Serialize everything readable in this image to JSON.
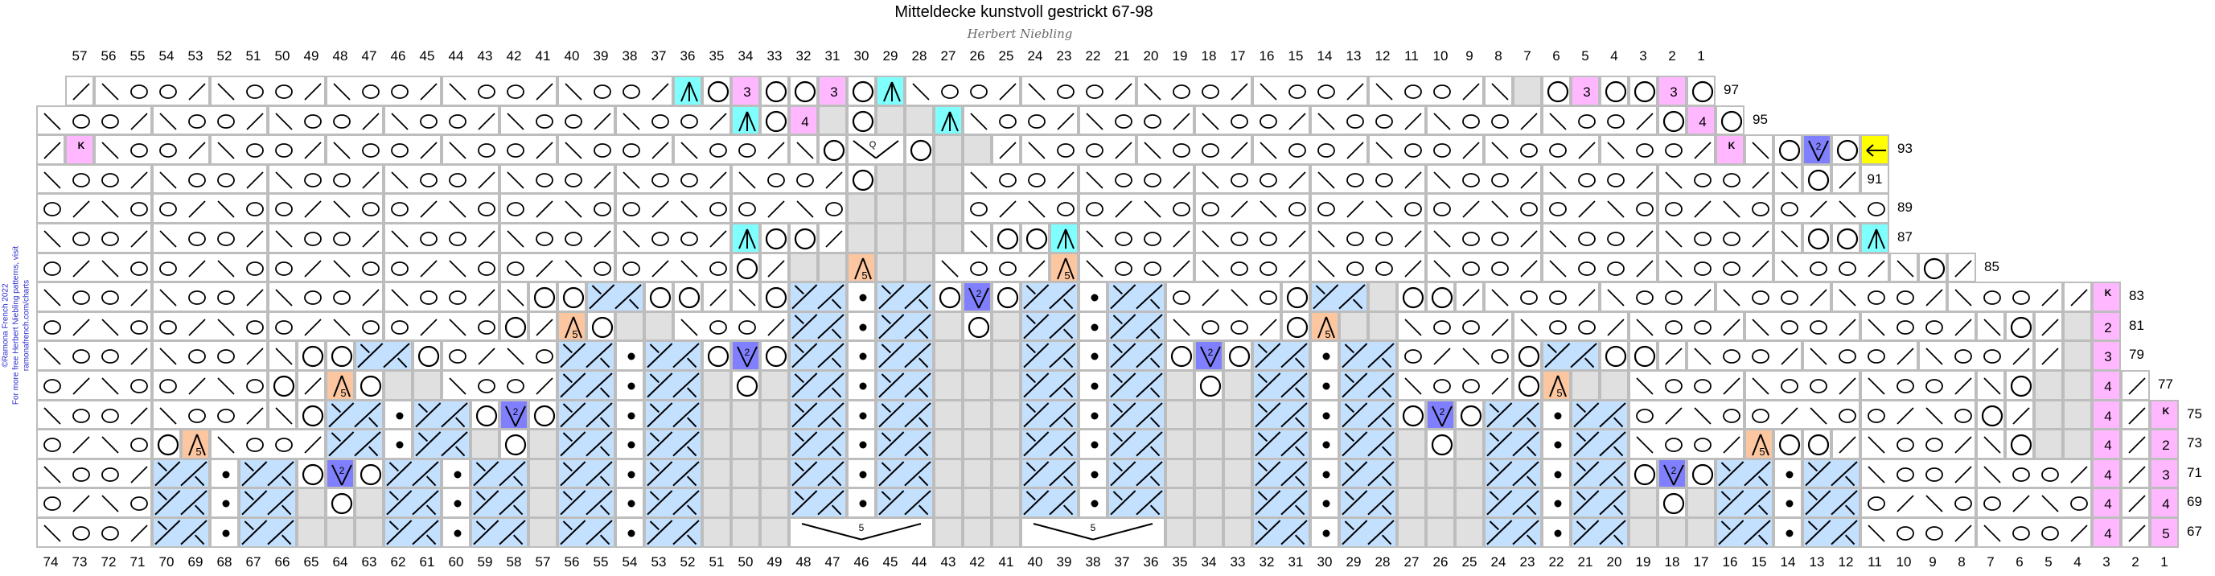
{
  "title": "Mitteldecke kunstvoll gestrickt 67-98",
  "subtitle": "Herbert Niebling",
  "credit": [
    "©Ramona French 2022",
    "For more free Herbert Niebling patterns, visit",
    "ramonafrench.com/charts"
  ],
  "symbols": {
    "K": "K",
    "b": "2",
    "c": "3",
    "d": "4",
    "e": "5",
    "F": "5",
    "V": "2",
    "Q": "Q",
    "W": "5",
    "arrow": "←"
  },
  "colors": {
    "grey": "#e0e0e0",
    "cyan": "#80ffff",
    "orange": "#fcc6a0",
    "violet": "#8080ff",
    "pink": "#ffb8ff",
    "yellow": "#ffff00",
    "cable": "#c4e0ff",
    "grid": "#bdbdbd"
  },
  "top_columns": [
    57,
    56,
    55,
    54,
    53,
    52,
    51,
    50,
    49,
    48,
    47,
    46,
    45,
    44,
    43,
    42,
    41,
    40,
    39,
    38,
    37,
    36,
    35,
    34,
    33,
    32,
    31,
    30,
    29,
    28,
    27,
    26,
    25,
    24,
    23,
    22,
    21,
    20,
    19,
    18,
    17,
    16,
    15,
    14,
    13,
    12,
    11,
    10,
    9,
    8,
    7,
    6,
    5,
    4,
    3,
    2,
    1
  ],
  "bottom_columns": [
    74,
    73,
    72,
    71,
    70,
    69,
    68,
    67,
    66,
    65,
    64,
    63,
    62,
    61,
    60,
    59,
    58,
    57,
    56,
    55,
    54,
    53,
    52,
    51,
    50,
    49,
    48,
    47,
    46,
    45,
    44,
    43,
    42,
    41,
    40,
    39,
    38,
    37,
    36,
    35,
    34,
    33,
    32,
    31,
    30,
    29,
    28,
    27,
    26,
    25,
    24,
    23,
    22,
    21,
    20,
    19,
    18,
    17,
    16,
    15,
    14,
    13,
    12,
    11,
    10,
    9,
    8,
    7,
    6,
    5,
    4,
    3,
    2,
    1
  ],
  "rows": [
    {
      "label": "97",
      "start": 73,
      "cells": "R LooR LooR LooR LooR LooR A O c O O c O A LooR LooR LooR LooR LooR L # O c O O c O"
    },
    {
      "label": "95",
      "start": 74,
      "cells": "LooR LooR LooR LooR LooR LooR A O d # O # # A LooR LooR LooR LooR LooR LooR O d O"
    },
    {
      "label": "93",
      "start": 74,
      "cells": "R K LooR LooR LooR LooR LooR LooR L O Q O # # R LooR LooR LooR LooR LooR LooR K L O V O <"
    },
    {
      "label": "91",
      "start": 74,
      "boxed_label": true,
      "cells": "LooR LooR LooR LooR LooR LooR LooR O # # # LooR LooR LooR LooR LooR LooR LooR L O R"
    },
    {
      "label": "89",
      "start": 74,
      "cells": "oRLo oRLo oRLo oRLo oRLo oRLo oRLo # # # # oRLo oRLo oRLo oRLo oRLo oRLo oRLo oRLo"
    },
    {
      "label": "87",
      "start": 74,
      "cells": "LooR LooR LooR LooR LooR LooR A O O R # # # # L O O A LooR LooR LooR LooR LooR LooR L O O A"
    },
    {
      "label": "85",
      "start": 74,
      "cells": "oRLo oRLo oRLo oRLo oRLo oRLo O R # # F # # LooR F LooR LooR LooR LooR LooR LooR LooR L O R"
    },
    {
      "label": "83",
      "start": 74,
      "cells": "LooR LooR LooR LooR L O O X O O R L O X . X O V O X . X oRLo O X # O O R LooR LooR LooR LooR LooR R K"
    },
    {
      "label": "81",
      "start": 74,
      "cells": "oRLo oRLo oRLo oRLo O R F O # # LooR X . X # O # X . X LooR O F # # LooR LooR LooR LooR LooR L O R # b"
    },
    {
      "label": "79",
      "start": 74,
      "cells": "LooR LooR L O O X O oRLo X . X O V O X . X # # # X . X O V O X . X oRLo O X O O R LooR LooR LooR R # c"
    },
    {
      "label": "77",
      "start": 74,
      "cells": "oRLo oRLo O R F O # # LooR X . X # O # X . X # # # X . X # O # X . X LooR O F # # LooR LooR LooR L O # # d R"
    },
    {
      "label": "75",
      "start": 74,
      "cells": "LooR LooR L O X . X O V O X . X # # # X . X # # # X . X # # # X . X O V O X . X oRLo oRLo oRLo O R # # d R K"
    },
    {
      "label": "73",
      "start": 74,
      "cells": "oRLo O F LooR X . X # O # X . X # # # X . X # # # X . X # # # X . X # O # X . X LooR F O O R LooR L O # # d R b"
    },
    {
      "label": "71",
      "start": 74,
      "cells": "LooR X . X O V O X . X # X . X # # # X . X # # # X . X # # # X . X # # # X . X O V O X . X LooR LooR d R c"
    },
    {
      "label": "69",
      "start": 74,
      "cells": "oRLo X . X # O # X . X # X . X # # # X . X # # # X . X # # # X . X # # # X . X # O # X . X oRLo oRLo d R d"
    },
    {
      "label": "67",
      "start": 74,
      "cells": "LooR X . X # # # X . X # X . X # # # W # # # W # # # X . X # # # X . X # # # X . X LooR LooR d R e"
    }
  ]
}
